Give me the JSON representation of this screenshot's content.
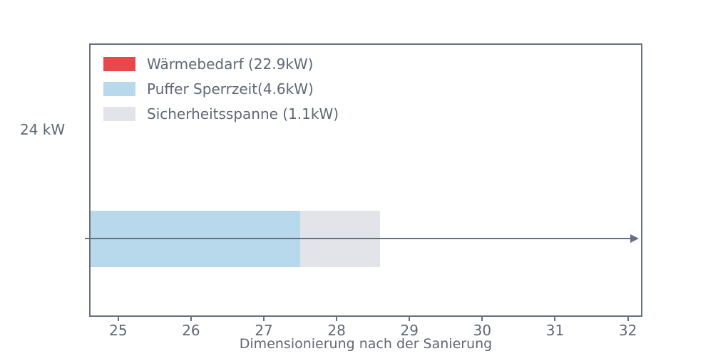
{
  "colors": {
    "axis": "#66707e",
    "text": "#5e6876",
    "background": "#ffffff",
    "waermebedarf_red": "#e8484b",
    "puffer_blue": "#b8d9ec",
    "sicherheit_gray": "#e2e4ea"
  },
  "y_label": "24 kW",
  "chart_data": {
    "type": "bar",
    "orientation": "horizontal",
    "stacked": true,
    "title": "",
    "xlabel": "Dimensionierung nach der Sanierung",
    "ylabel": "24 kW",
    "categories": [
      "24 kW"
    ],
    "series": [
      {
        "name": "Wärmebedarf (22.9kW)",
        "value": 22.9,
        "color": "#e8484b"
      },
      {
        "name": "Puffer Sperrzeit(4.6kW)",
        "value": 4.6,
        "color": "#b8d9ec"
      },
      {
        "name": "Sicherheitsspanne (1.1kW)",
        "value": 1.1,
        "color": "#e2e4ea"
      }
    ],
    "stack_total": 28.6,
    "x_ticks": [
      25,
      26,
      27,
      28,
      29,
      30,
      31,
      32
    ],
    "xlim": [
      24.6,
      32.2
    ],
    "grid": false,
    "legend_position": "upper left",
    "annotations": [
      {
        "type": "arrow",
        "direction": "right",
        "at": "bar-center",
        "label": ""
      }
    ]
  }
}
